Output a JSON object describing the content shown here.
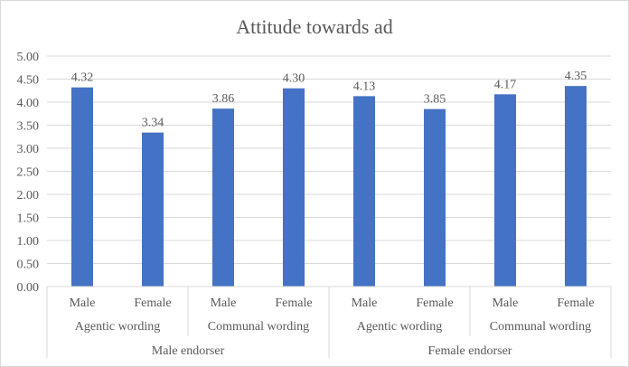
{
  "chart_data": {
    "type": "bar",
    "title": "Attitude towards ad",
    "ylim": [
      0,
      5
    ],
    "y_step": 0.5,
    "yticks": [
      "0.00",
      "0.50",
      "1.00",
      "1.50",
      "2.00",
      "2.50",
      "3.00",
      "3.50",
      "4.00",
      "4.50",
      "5.00"
    ],
    "bars": [
      {
        "endorser": "Male endorser",
        "wording": "Agentic wording",
        "gender": "Male",
        "value": 4.32,
        "label": "4.32"
      },
      {
        "endorser": "Male endorser",
        "wording": "Agentic wording",
        "gender": "Female",
        "value": 3.34,
        "label": "3.34"
      },
      {
        "endorser": "Male endorser",
        "wording": "Communal wording",
        "gender": "Male",
        "value": 3.86,
        "label": "3.86"
      },
      {
        "endorser": "Male endorser",
        "wording": "Communal wording",
        "gender": "Female",
        "value": 4.3,
        "label": "4.30"
      },
      {
        "endorser": "Female endorser",
        "wording": "Agentic wording",
        "gender": "Male",
        "value": 4.13,
        "label": "4.13"
      },
      {
        "endorser": "Female endorser",
        "wording": "Agentic wording",
        "gender": "Female",
        "value": 3.85,
        "label": "3.85"
      },
      {
        "endorser": "Female endorser",
        "wording": "Communal wording",
        "gender": "Male",
        "value": 4.17,
        "label": "4.17"
      },
      {
        "endorser": "Female endorser",
        "wording": "Communal wording",
        "gender": "Female",
        "value": 4.35,
        "label": "4.35"
      }
    ],
    "wording_groups": [
      "Agentic wording",
      "Communal wording",
      "Agentic wording",
      "Communal wording"
    ],
    "endorser_groups": [
      "Male endorser",
      "Female endorser"
    ],
    "bar_color": "#4472c4",
    "grid": true
  }
}
